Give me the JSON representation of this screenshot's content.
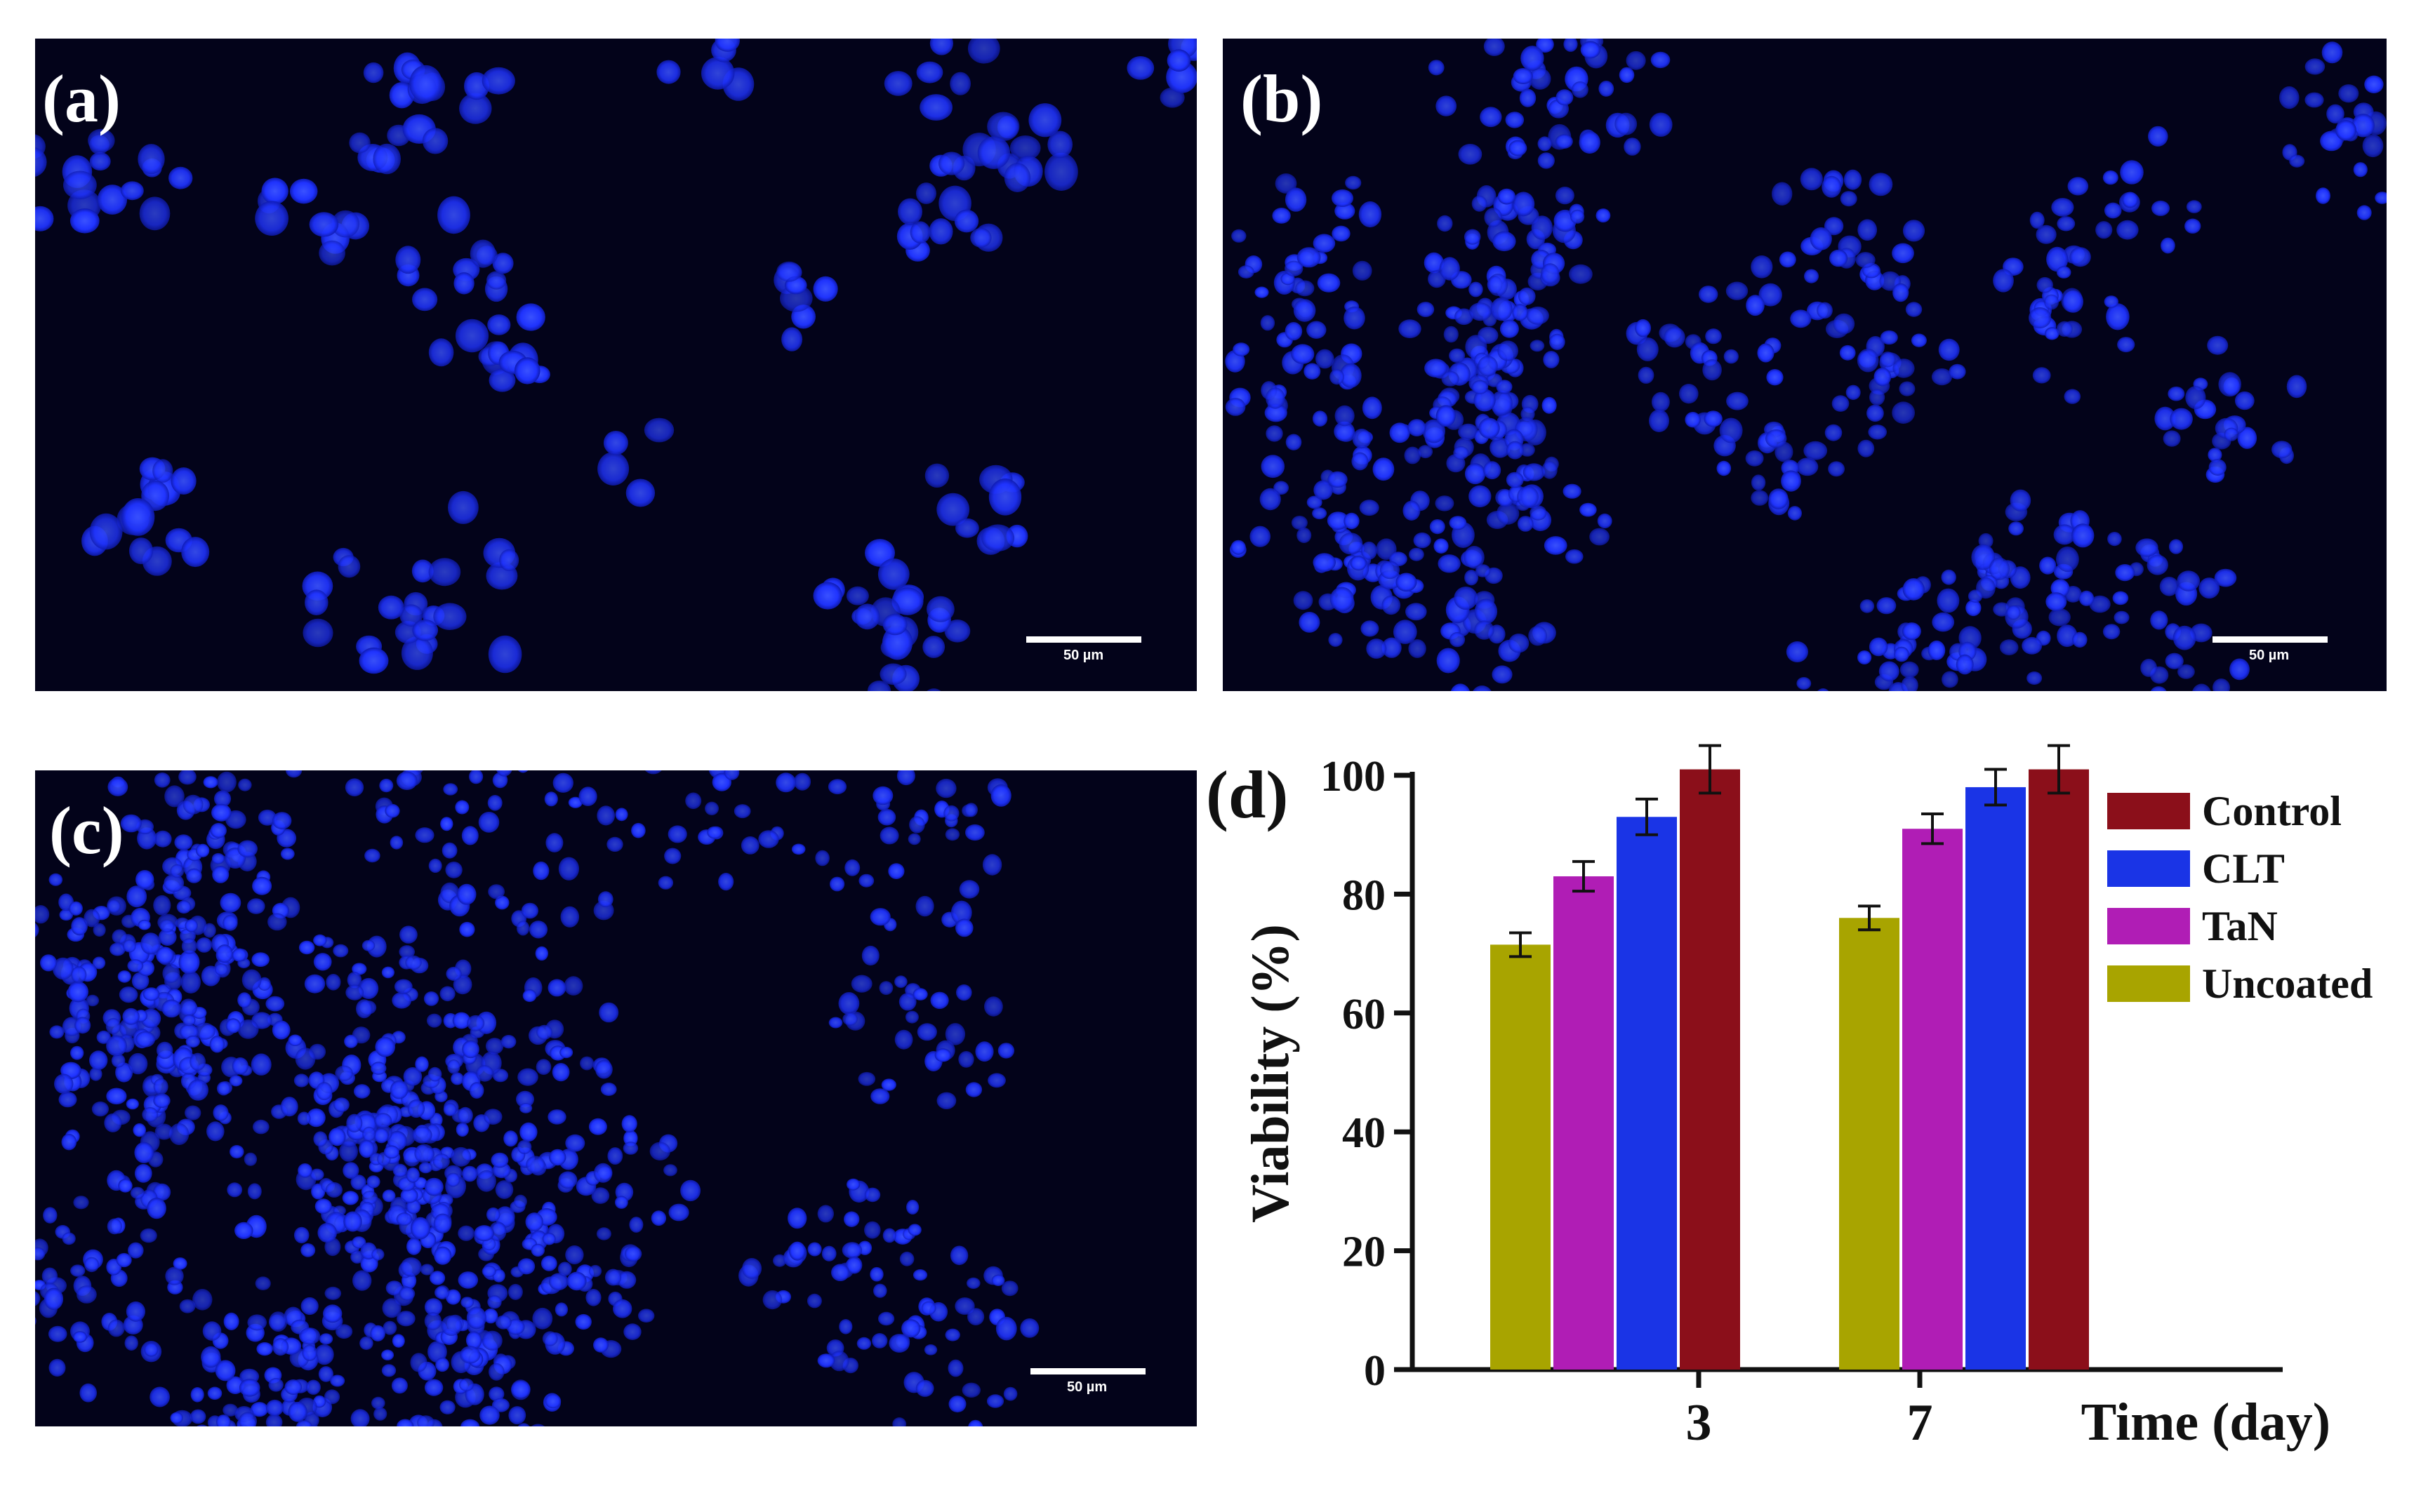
{
  "panels": [
    {
      "letter": "(a)",
      "scalebar": "50 µm"
    },
    {
      "letter": "(b)",
      "scalebar": "50 µm"
    },
    {
      "letter": "(c)",
      "scalebar": "50 µm"
    }
  ],
  "chart_panel_letter": "(d)",
  "colors": {
    "Control": "#8b0f1a",
    "CLT": "#1a34e6",
    "TaN": "#b01db5",
    "Uncoated": "#a8a400",
    "cell_stain": "#1f33ff",
    "background": "#03031a"
  },
  "chart_data": {
    "type": "bar",
    "categories": [
      "3",
      "7"
    ],
    "series": [
      {
        "name": "Uncoated",
        "values": [
          71.5,
          76
        ],
        "errors": [
          2,
          2
        ]
      },
      {
        "name": "TaN",
        "values": [
          83,
          91
        ],
        "errors": [
          2.5,
          2.5
        ]
      },
      {
        "name": "CLT",
        "values": [
          93,
          98
        ],
        "errors": [
          3,
          3
        ]
      },
      {
        "name": "Control",
        "values": [
          101,
          101
        ],
        "errors": [
          4,
          4
        ]
      }
    ],
    "legend_order": [
      "Control",
      "CLT",
      "TaN",
      "Uncoated"
    ],
    "xlabel": "Time (day)",
    "ylabel": "Viability (%)",
    "ylim": [
      0,
      100
    ],
    "yticks": [
      0,
      20,
      40,
      60,
      80,
      100
    ],
    "legend": "right",
    "grid": false
  }
}
